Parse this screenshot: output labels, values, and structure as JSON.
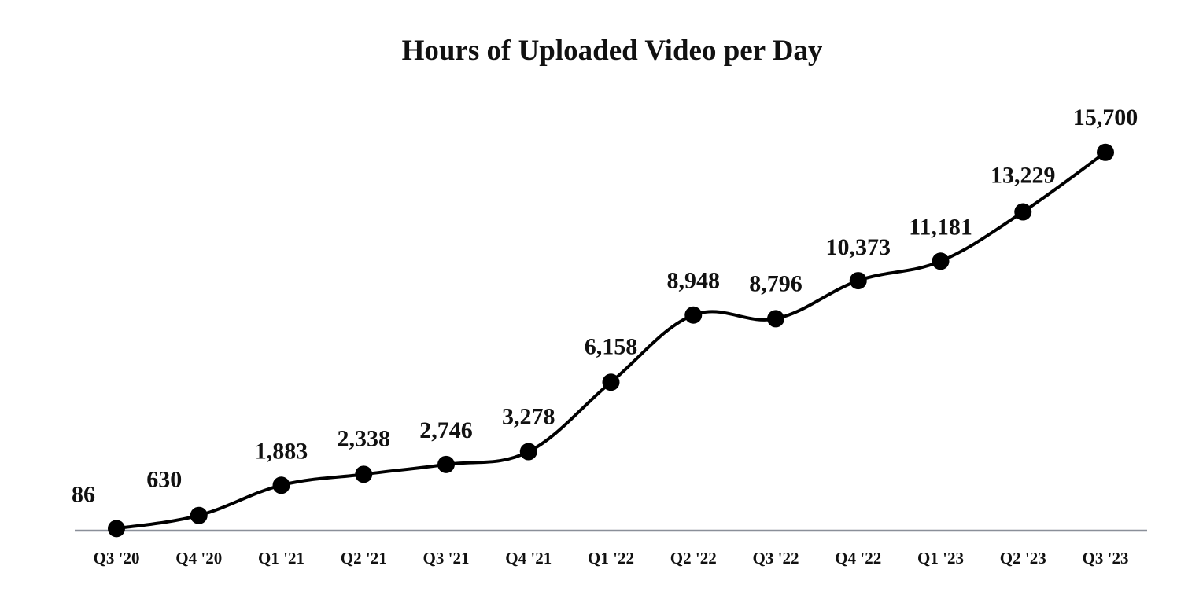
{
  "chart_data": {
    "type": "line",
    "title": "Hours of Uploaded Video per Day",
    "xlabel": "",
    "ylabel": "",
    "categories": [
      "Q3 '20",
      "Q4 '20",
      "Q1 '21",
      "Q2 '21",
      "Q3 '21",
      "Q4 '21",
      "Q1 '22",
      "Q2 '22",
      "Q3 '22",
      "Q4 '22",
      "Q1 '23",
      "Q2 '23",
      "Q3 '23"
    ],
    "series": [
      {
        "values": [
          86,
          630,
          1883,
          2338,
          2746,
          3278,
          6158,
          8948,
          8796,
          10373,
          11181,
          13229,
          15700
        ],
        "color": "#000000"
      }
    ],
    "data_labels": [
      "86",
      "630",
      "1,883",
      "2,338",
      "2,746",
      "3,278",
      "6,158",
      "8,948",
      "8,796",
      "10,373",
      "11,181",
      "13,229",
      "15,700"
    ],
    "ylim": [
      0,
      16000
    ],
    "grid": false,
    "legend": "none",
    "smooth": true,
    "colors": {
      "line": "#000000",
      "axis": "#8a8f99",
      "text": "#111111"
    }
  }
}
